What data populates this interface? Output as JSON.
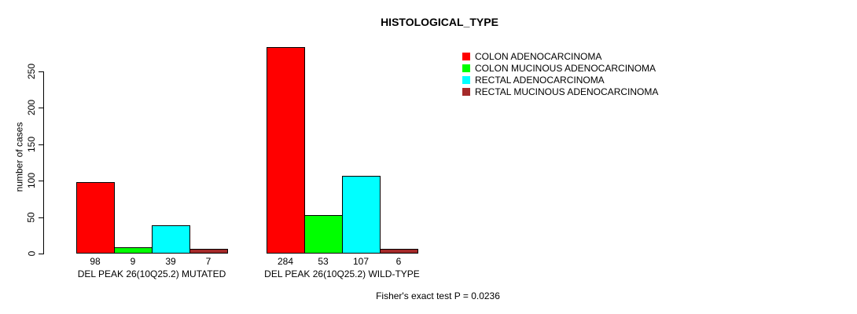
{
  "title": "HISTOLOGICAL_TYPE",
  "y_axis_label": "number of cases",
  "footer_note": "Fisher's exact test P = 0.0236",
  "chart_data": {
    "type": "bar",
    "title": "HISTOLOGICAL_TYPE",
    "xlabel": "",
    "ylabel": "number of cases",
    "categories": [
      "DEL PEAK 26(10Q25.2) MUTATED",
      "DEL PEAK 26(10Q25.2) WILD-TYPE"
    ],
    "series": [
      {
        "name": "COLON ADENOCARCINOMA",
        "color": "#ff0000",
        "values": [
          98,
          284
        ]
      },
      {
        "name": "COLON MUCINOUS ADENOCARCINOMA",
        "color": "#00ff00",
        "values": [
          9,
          53
        ]
      },
      {
        "name": "RECTAL ADENOCARCINOMA",
        "color": "#00ffff",
        "values": [
          39,
          107
        ]
      },
      {
        "name": "RECTAL MUCINOUS ADENOCARCINOMA",
        "color": "#a52a2a",
        "values": [
          7,
          6
        ]
      }
    ],
    "bar_value_labels": [
      [
        "98",
        "9",
        "39",
        "7"
      ],
      [
        "284",
        "53",
        "107",
        "6"
      ]
    ],
    "yticks": [
      0,
      50,
      100,
      150,
      200,
      250
    ],
    "ylim": [
      0,
      250
    ],
    "grid": false,
    "legend_position": "top-right",
    "annotation": "Fisher's exact test P = 0.0236",
    "bar_border_color": "#000000",
    "axis_color": "#000000"
  }
}
